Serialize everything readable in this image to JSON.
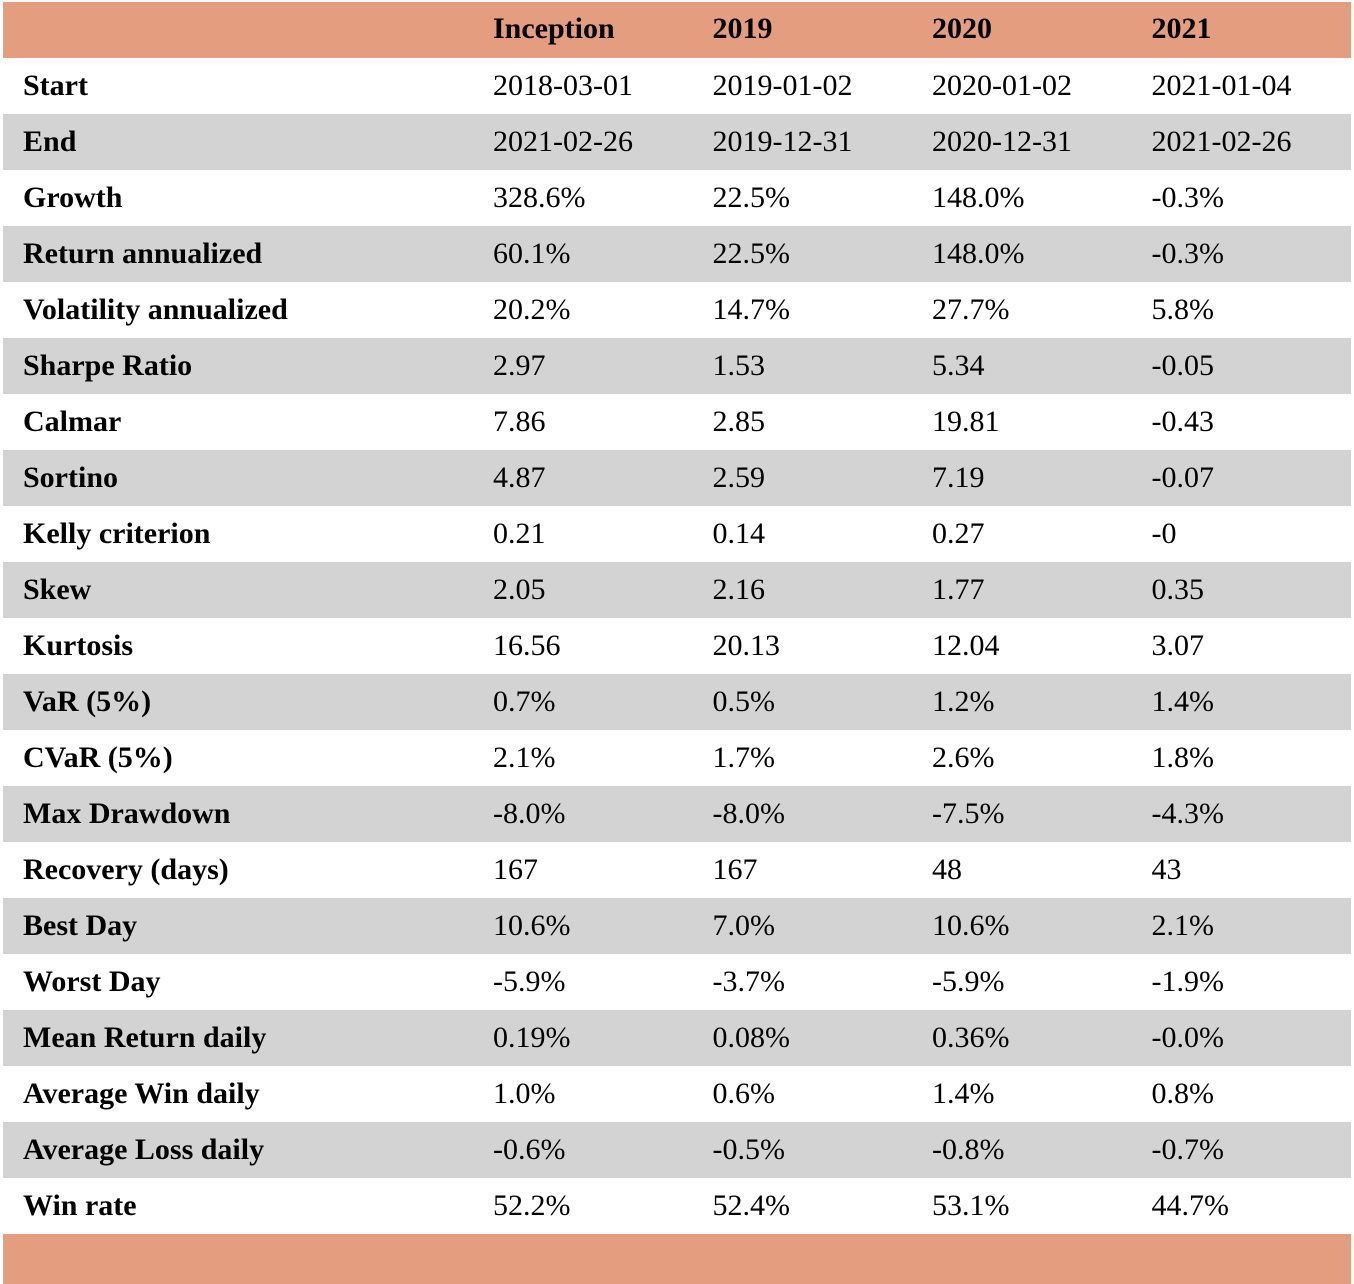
{
  "colors": {
    "header_background": "#e59d80",
    "row_even_background": "#ffffff",
    "row_odd_background": "#d3d3d3",
    "footer_background": "#e59d80"
  },
  "table": {
    "headers": [
      "",
      "Inception",
      "2019",
      "2020",
      "2021"
    ],
    "rows": [
      {
        "label": "Start",
        "values": [
          "2018-03-01",
          "2019-01-02",
          "2020-01-02",
          "2021-01-04"
        ]
      },
      {
        "label": "End",
        "values": [
          "2021-02-26",
          "2019-12-31",
          "2020-12-31",
          "2021-02-26"
        ]
      },
      {
        "label": "Growth",
        "values": [
          "328.6%",
          "22.5%",
          "148.0%",
          "-0.3%"
        ]
      },
      {
        "label": "Return annualized",
        "values": [
          "60.1%",
          "22.5%",
          "148.0%",
          "-0.3%"
        ]
      },
      {
        "label": "Volatility annualized",
        "values": [
          "20.2%",
          "14.7%",
          "27.7%",
          "5.8%"
        ]
      },
      {
        "label": "Sharpe Ratio",
        "values": [
          "2.97",
          "1.53",
          "5.34",
          "-0.05"
        ]
      },
      {
        "label": "Calmar",
        "values": [
          "7.86",
          "2.85",
          "19.81",
          "-0.43"
        ]
      },
      {
        "label": "Sortino",
        "values": [
          "4.87",
          "2.59",
          "7.19",
          "-0.07"
        ]
      },
      {
        "label": "Kelly criterion",
        "values": [
          "0.21",
          "0.14",
          "0.27",
          "-0"
        ]
      },
      {
        "label": "Skew",
        "values": [
          "2.05",
          "2.16",
          "1.77",
          "0.35"
        ]
      },
      {
        "label": "Kurtosis",
        "values": [
          "16.56",
          "20.13",
          "12.04",
          "3.07"
        ]
      },
      {
        "label": "VaR (5%)",
        "values": [
          "0.7%",
          "0.5%",
          "1.2%",
          "1.4%"
        ]
      },
      {
        "label": "CVaR (5%)",
        "values": [
          "2.1%",
          "1.7%",
          "2.6%",
          "1.8%"
        ]
      },
      {
        "label": "Max Drawdown",
        "values": [
          "-8.0%",
          "-8.0%",
          "-7.5%",
          "-4.3%"
        ]
      },
      {
        "label": "Recovery (days)",
        "values": [
          "167",
          "167",
          "48",
          "43"
        ]
      },
      {
        "label": "Best Day",
        "values": [
          "10.6%",
          "7.0%",
          "10.6%",
          "2.1%"
        ]
      },
      {
        "label": "Worst Day",
        "values": [
          "-5.9%",
          "-3.7%",
          "-5.9%",
          "-1.9%"
        ]
      },
      {
        "label": "Mean Return daily",
        "values": [
          "0.19%",
          "0.08%",
          "0.36%",
          "-0.0%"
        ]
      },
      {
        "label": "Average Win daily",
        "values": [
          "1.0%",
          "0.6%",
          "1.4%",
          "0.8%"
        ]
      },
      {
        "label": "Average Loss daily",
        "values": [
          "-0.6%",
          "-0.5%",
          "-0.8%",
          "-0.7%"
        ]
      },
      {
        "label": "Win rate",
        "values": [
          "52.2%",
          "52.4%",
          "53.1%",
          "44.7%"
        ]
      }
    ]
  }
}
